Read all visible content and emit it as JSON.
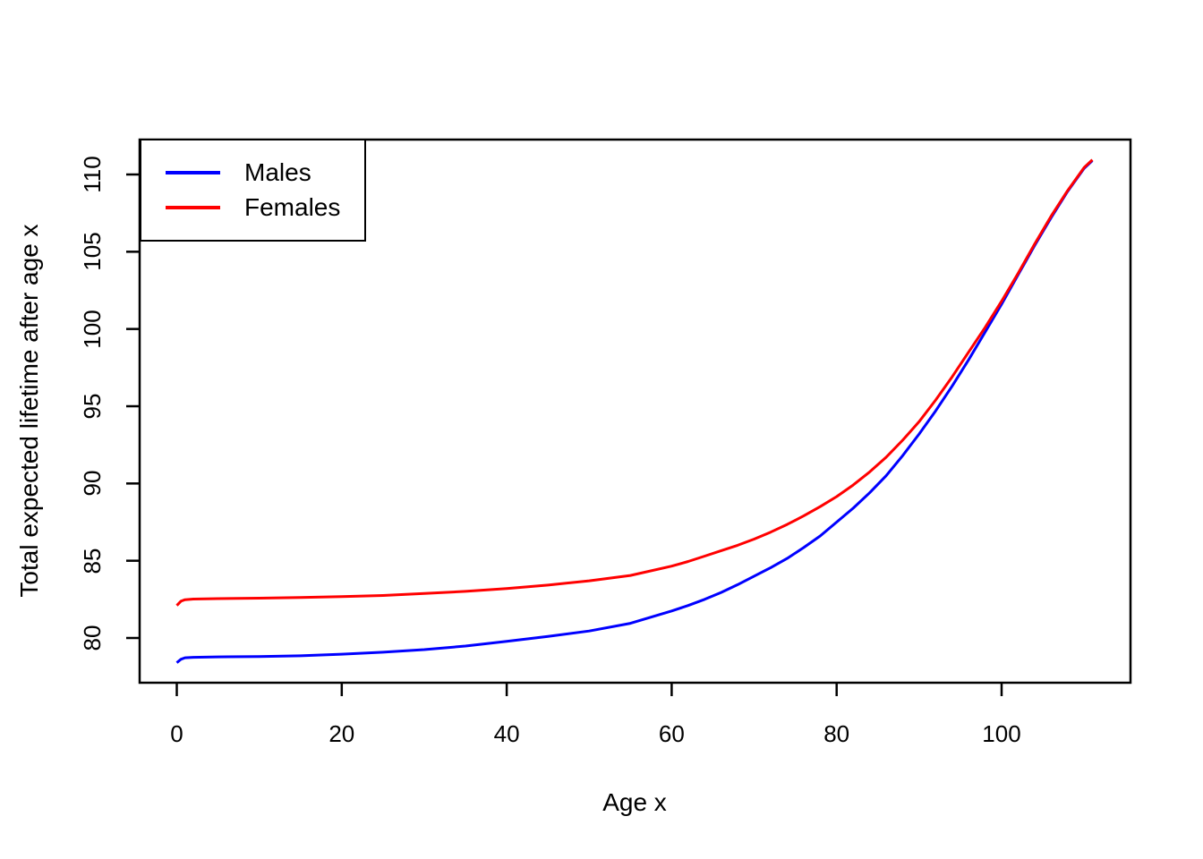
{
  "chart_data": {
    "type": "line",
    "title": "",
    "xlabel": "Age x",
    "ylabel": "Total expected lifetime after age x",
    "xlim": [
      -4.5,
      115.6
    ],
    "ylim": [
      77.1,
      112.2
    ],
    "x_ticks": [
      0,
      20,
      40,
      60,
      80,
      100
    ],
    "y_ticks": [
      80,
      85,
      90,
      95,
      100,
      105,
      110
    ],
    "grid": false,
    "legend_position": "topleft",
    "axis_color": "#000000",
    "background_color": "#FFFFFF",
    "series": [
      {
        "name": "Males",
        "color": "#0000FF",
        "x": [
          0,
          0.5,
          1,
          2,
          5,
          10,
          15,
          20,
          25,
          30,
          35,
          40,
          45,
          50,
          55,
          60,
          62,
          64,
          66,
          68,
          70,
          72,
          74,
          76,
          78,
          80,
          82,
          84,
          86,
          88,
          90,
          92,
          94,
          96,
          98,
          100,
          102,
          104,
          106,
          108,
          110,
          111
        ],
        "y": [
          78.4,
          78.62,
          78.72,
          78.75,
          78.78,
          78.8,
          78.85,
          78.95,
          79.08,
          79.25,
          79.48,
          79.78,
          80.1,
          80.45,
          80.95,
          81.75,
          82.1,
          82.5,
          82.95,
          83.45,
          84.0,
          84.55,
          85.15,
          85.85,
          86.6,
          87.5,
          88.4,
          89.4,
          90.5,
          91.8,
          93.2,
          94.7,
          96.3,
          98.0,
          99.8,
          101.6,
          103.5,
          105.4,
          107.2,
          108.9,
          110.4,
          110.9
        ]
      },
      {
        "name": "Females",
        "color": "#FF0000",
        "x": [
          0,
          0.5,
          1,
          2,
          5,
          10,
          15,
          20,
          25,
          30,
          35,
          40,
          45,
          50,
          55,
          60,
          62,
          64,
          66,
          68,
          70,
          72,
          74,
          76,
          78,
          80,
          82,
          84,
          86,
          88,
          90,
          92,
          94,
          96,
          98,
          100,
          102,
          104,
          106,
          108,
          110,
          111
        ],
        "y": [
          82.1,
          82.38,
          82.48,
          82.52,
          82.55,
          82.58,
          82.62,
          82.68,
          82.75,
          82.88,
          83.02,
          83.2,
          83.42,
          83.7,
          84.05,
          84.65,
          84.95,
          85.3,
          85.65,
          86.0,
          86.4,
          86.85,
          87.35,
          87.9,
          88.5,
          89.15,
          89.9,
          90.75,
          91.7,
          92.8,
          94.0,
          95.4,
          96.9,
          98.5,
          100.1,
          101.8,
          103.6,
          105.5,
          107.3,
          108.95,
          110.45,
          110.95
        ]
      }
    ]
  }
}
